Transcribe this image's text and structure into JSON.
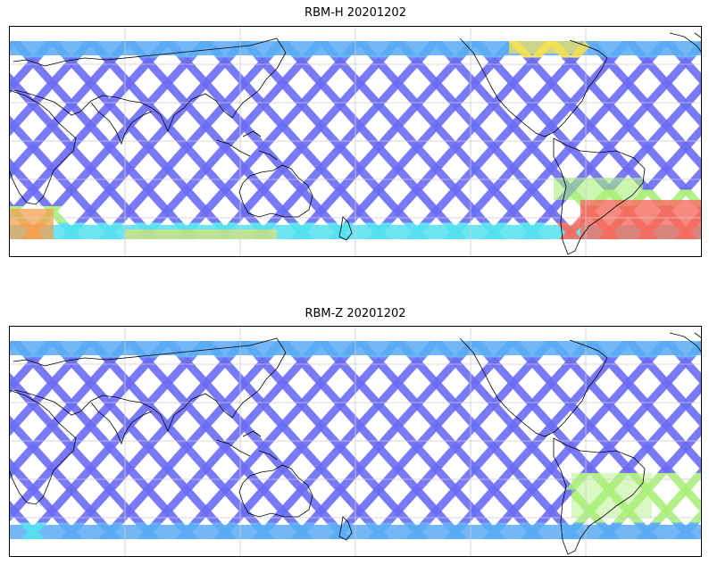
{
  "figure": {
    "panels": [
      {
        "title": "RBM-H 20201202",
        "variant": "H"
      },
      {
        "title": "RBM-Z 20201202",
        "variant": "Z"
      }
    ]
  },
  "map": {
    "projection": "plate-carree, centered ~150E, lat ~-70 to 80",
    "coastlines": "black thin outline",
    "gridlines": "light gray, 30 degree spacing",
    "swath_pattern": "diamond lattice of satellite ground tracks between ~-60 and ~72 lat"
  },
  "colors": {
    "low": "#6a6cf5",
    "mid_low": "#5aaaf5",
    "cyan": "#55e0f0",
    "green": "#aaf07a",
    "yellow": "#f5e055",
    "orange": "#f5a050",
    "red": "#f56c60",
    "coast": "#000000",
    "grid": "#cccccc"
  }
}
